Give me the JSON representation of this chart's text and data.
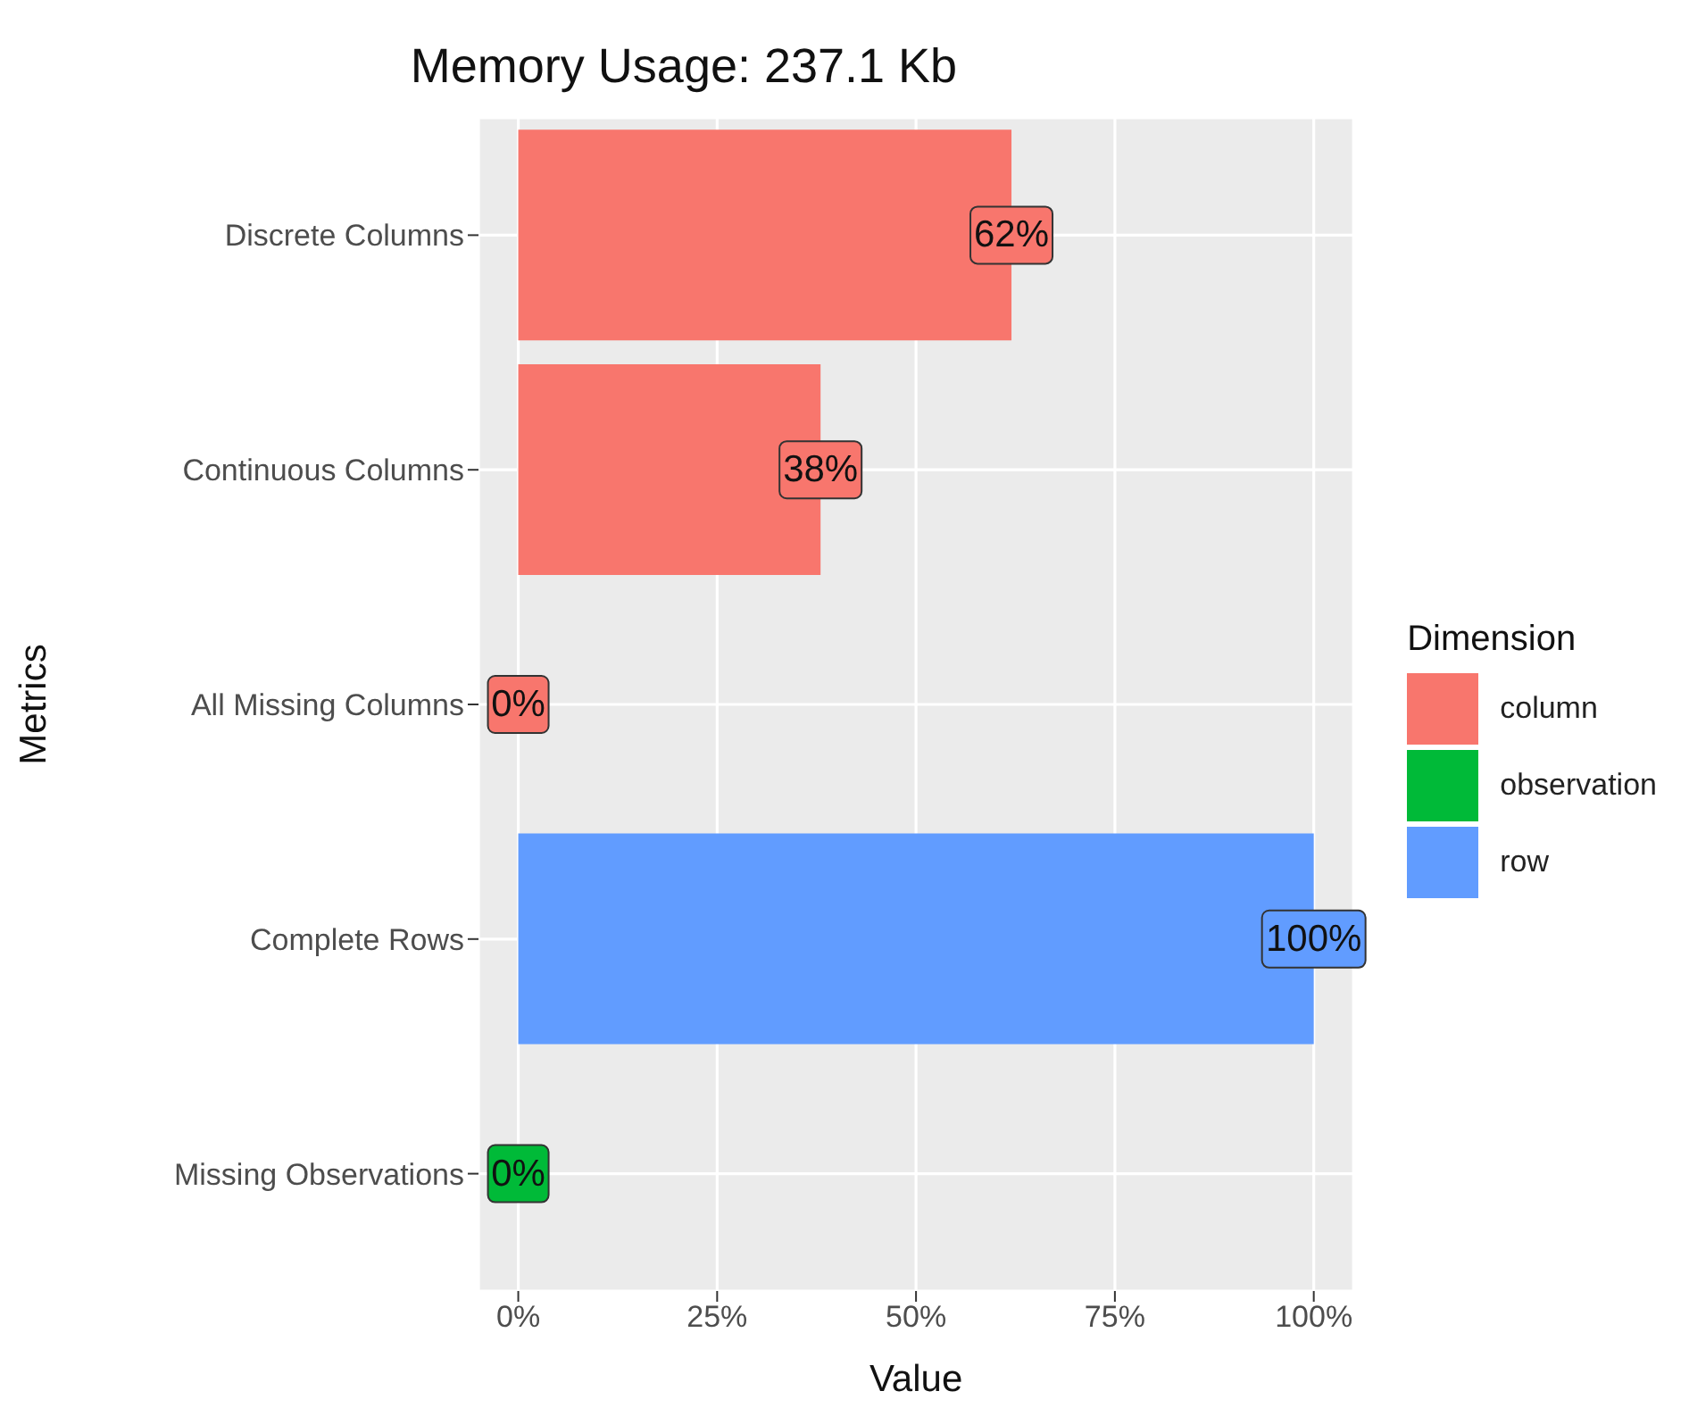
{
  "chart_data": {
    "type": "bar",
    "orientation": "horizontal",
    "stacked": true,
    "title": "Memory Usage: 237.1 Kb",
    "xlabel": "Value",
    "ylabel": "Metrics",
    "legend_title": "Dimension",
    "categories": [
      "Discrete Columns",
      "Continuous Columns",
      "All Missing Columns",
      "Complete Rows",
      "Missing Observations"
    ],
    "series": [
      {
        "name": "column",
        "color": "#f8766d",
        "values": [
          62,
          38,
          0,
          null,
          null
        ],
        "value_labels": [
          "62%",
          "38%",
          "0%",
          null,
          null
        ]
      },
      {
        "name": "observation",
        "color": "#00ba38",
        "values": [
          null,
          null,
          null,
          null,
          0
        ],
        "value_labels": [
          null,
          null,
          null,
          null,
          "0%"
        ]
      },
      {
        "name": "row",
        "color": "#619cff",
        "values": [
          null,
          null,
          null,
          100,
          null
        ],
        "value_labels": [
          null,
          null,
          null,
          "100%",
          null
        ]
      }
    ],
    "xlim": [
      -5,
      105
    ],
    "xticks": [
      {
        "value": 0,
        "label": "0%"
      },
      {
        "value": 25,
        "label": "25%"
      },
      {
        "value": 50,
        "label": "50%"
      },
      {
        "value": 75,
        "label": "75%"
      },
      {
        "value": 100,
        "label": "100%"
      }
    ],
    "grid": true,
    "legend": "right"
  }
}
